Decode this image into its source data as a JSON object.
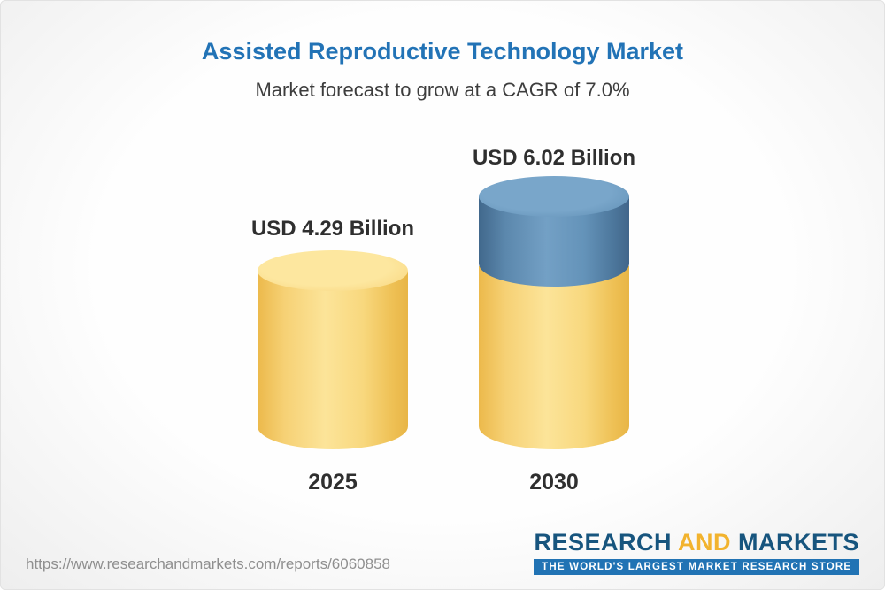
{
  "header": {
    "title": "Assisted Reproductive Technology Market",
    "subtitle": "Market forecast to grow at a CAGR of 7.0%"
  },
  "chart_data": {
    "type": "bar",
    "categories": [
      "2025",
      "2030"
    ],
    "values": [
      4.29,
      6.02
    ],
    "value_labels": [
      "USD 4.29 Billion",
      "USD 6.02 Billion"
    ],
    "unit": "USD Billion",
    "cagr_percent": 7.0,
    "title": "Assisted Reproductive Technology Market",
    "subtitle": "Market forecast to grow at a CAGR of 7.0%",
    "legend_position": "none",
    "grid": false,
    "colors": {
      "base_segment": "#f6cd66",
      "growth_segment": "#5b88ad",
      "title_text": "#2273b6",
      "label_text": "#2f2f2f"
    },
    "notes": "2030 bar shows base value in yellow with incremental growth segment in blue on top"
  },
  "footer": {
    "url": "https://www.researchandmarkets.com/reports/6060858",
    "logo": {
      "word_research": "RESEARCH",
      "word_and": "AND",
      "word_markets": "MARKETS",
      "tagline": "THE WORLD'S LARGEST MARKET RESEARCH STORE"
    }
  }
}
